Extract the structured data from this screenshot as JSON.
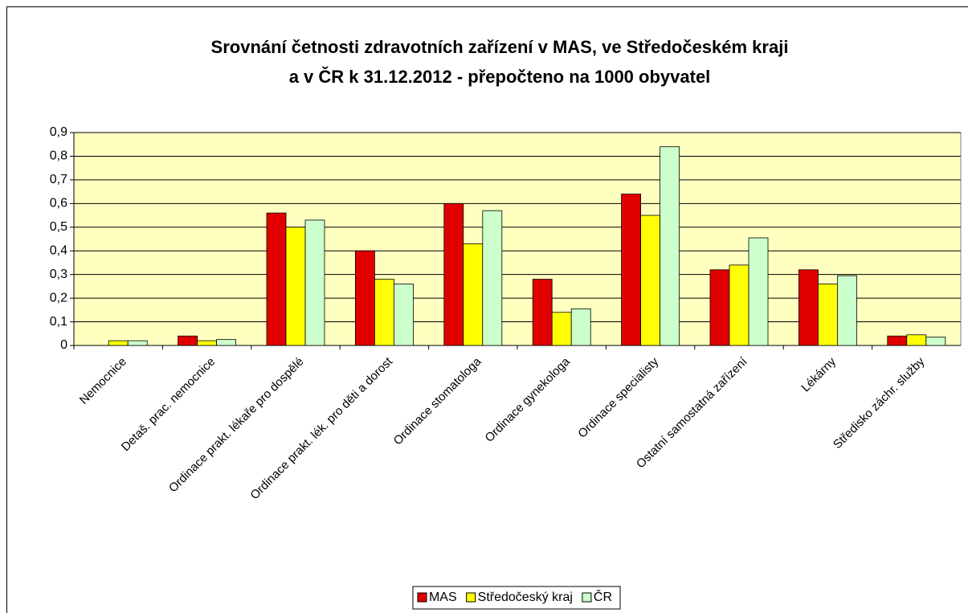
{
  "chart_data": {
    "type": "bar",
    "title": [
      "Srovnání četnosti zdravotních zařízení v MAS, ve Středočeském kraji",
      "a v ČR k 31.12.2012 - přepočteno na 1000 obyvatel"
    ],
    "categories": [
      "Nemocnice",
      "Detaš. prac. nemocnice",
      "Ordinace prakt. lékaře pro dospělé",
      "Ordinace prakt. lék. pro děti a dorost",
      "Ordinace stomatologa",
      "Ordinace gynekologa",
      "Ordinace specialisty",
      "Ostatní samostatná zařízení",
      "Lékárny",
      "Středisko záchr. služby"
    ],
    "series": [
      {
        "name": "MAS",
        "color": "#e00000",
        "values": [
          0,
          0.04,
          0.56,
          0.4,
          0.6,
          0.28,
          0.64,
          0.32,
          0.32,
          0.04
        ]
      },
      {
        "name": "Středočeský kraj",
        "color": "#ffff00",
        "values": [
          0.02,
          0.02,
          0.5,
          0.28,
          0.43,
          0.14,
          0.55,
          0.34,
          0.26,
          0.045
        ]
      },
      {
        "name": "ČR",
        "color": "#ccffcc",
        "values": [
          0.02,
          0.025,
          0.53,
          0.26,
          0.57,
          0.155,
          0.84,
          0.455,
          0.295,
          0.035
        ]
      }
    ],
    "ylim": [
      0,
      0.9
    ],
    "yticks": [
      0,
      {
        "value": 0.1,
        "label": "0,1"
      },
      {
        "value": 0.2,
        "label": "0,2"
      },
      {
        "value": 0.3,
        "label": "0,3"
      },
      {
        "value": 0.4,
        "label": "0,4"
      },
      {
        "value": 0.5,
        "label": "0,5"
      },
      {
        "value": 0.6,
        "label": "0,6"
      },
      {
        "value": 0.7,
        "label": "0,7"
      },
      {
        "value": 0.8,
        "label": "0,8"
      },
      {
        "value": 0.9,
        "label": "0,9"
      }
    ],
    "grid": true,
    "legend": "bottom",
    "plot_background": "#ffffc0"
  }
}
